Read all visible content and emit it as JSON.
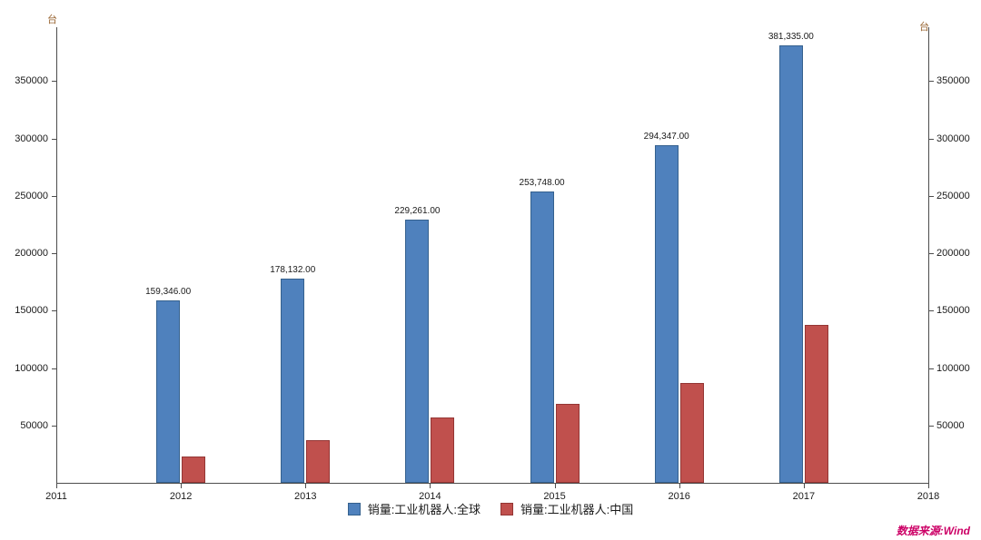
{
  "chart_data": {
    "type": "bar",
    "title": "",
    "unit_label_left": "台",
    "unit_label_right": "台",
    "x": [
      2012,
      2013,
      2014,
      2015,
      2016,
      2017
    ],
    "x_axis_ticks": [
      "2011",
      "2012",
      "2013",
      "2014",
      "2015",
      "2016",
      "2017",
      "2018"
    ],
    "x_range": [
      2011,
      2018
    ],
    "y_ticks": [
      50000,
      100000,
      150000,
      200000,
      250000,
      300000,
      350000
    ],
    "ylim": [
      0,
      397000
    ],
    "grid": false,
    "legend_position": "bottom",
    "series": [
      {
        "name": "销量:工业机器人:全球",
        "color": "#4f81bd",
        "border_color": "#35618e",
        "values": [
          159346,
          178132,
          229261,
          253748,
          294347,
          381335
        ],
        "labels": [
          "159,346.00",
          "178,132.00",
          "229,261.00",
          "253,748.00",
          "294,347.00",
          "381,335.00"
        ]
      },
      {
        "name": "销量:工业机器人:中国",
        "color": "#c0504d",
        "border_color": "#943634",
        "values": [
          23000,
          37000,
          57000,
          69000,
          87000,
          138000
        ],
        "labels": []
      }
    ]
  },
  "source_note": "数据来源:Wind"
}
